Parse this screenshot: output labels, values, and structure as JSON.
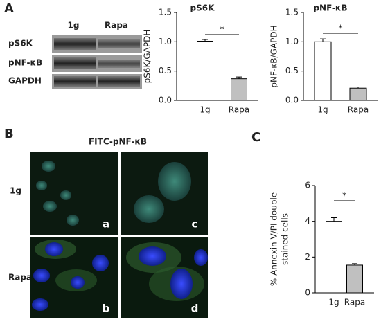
{
  "panels": {
    "a": "A",
    "b": "B",
    "c": "C"
  },
  "blot": {
    "columns": [
      "1g",
      "Rapa"
    ],
    "rows": [
      "pS6K",
      "pNF-κB",
      "GAPDH"
    ]
  },
  "micrograph": {
    "title": "FITC-pNF-κB",
    "rows": [
      "1g",
      "Rapa"
    ],
    "tiles": [
      "a",
      "c",
      "b",
      "d"
    ]
  },
  "chart_data": [
    {
      "type": "bar",
      "title": "pS6K",
      "ylabel": [
        "pS6K/GAPDH"
      ],
      "categories": [
        "1g",
        "Rapa"
      ],
      "values": [
        1.01,
        0.37
      ],
      "errors": [
        0.03,
        0.03
      ],
      "colors": [
        "#ffffff",
        "#c0c0c0"
      ],
      "ylim": [
        0,
        1.5
      ],
      "yticks": [
        {
          "value": 0,
          "label": "0.0"
        },
        {
          "value": 0.5,
          "label": "0.5"
        },
        {
          "value": 1,
          "label": "1.0"
        },
        {
          "value": 1.5,
          "label": "1.5"
        }
      ],
      "annotation": "*"
    },
    {
      "type": "bar",
      "title": "pNF-κB",
      "ylabel": [
        "pNF-κB/GAPDH"
      ],
      "categories": [
        "1g",
        "Rapa"
      ],
      "values": [
        1.0,
        0.21
      ],
      "errors": [
        0.05,
        0.02
      ],
      "colors": [
        "#ffffff",
        "#c0c0c0"
      ],
      "ylim": [
        0,
        1.5
      ],
      "yticks": [
        {
          "value": 0,
          "label": "0.0"
        },
        {
          "value": 0.5,
          "label": "0.5"
        },
        {
          "value": 1,
          "label": "1.0"
        },
        {
          "value": 1.5,
          "label": "1.5"
        }
      ],
      "annotation": "*"
    },
    {
      "type": "bar",
      "ylabel": [
        "% Annexin V/PI double",
        "stained cells"
      ],
      "categories": [
        "1g",
        "Rapa"
      ],
      "values": [
        4.0,
        1.55
      ],
      "errors": [
        0.2,
        0.08
      ],
      "colors": [
        "#ffffff",
        "#c0c0c0"
      ],
      "ylim": [
        0,
        6
      ],
      "yticks": [
        0,
        2,
        4,
        6
      ],
      "annotation": "*"
    }
  ]
}
